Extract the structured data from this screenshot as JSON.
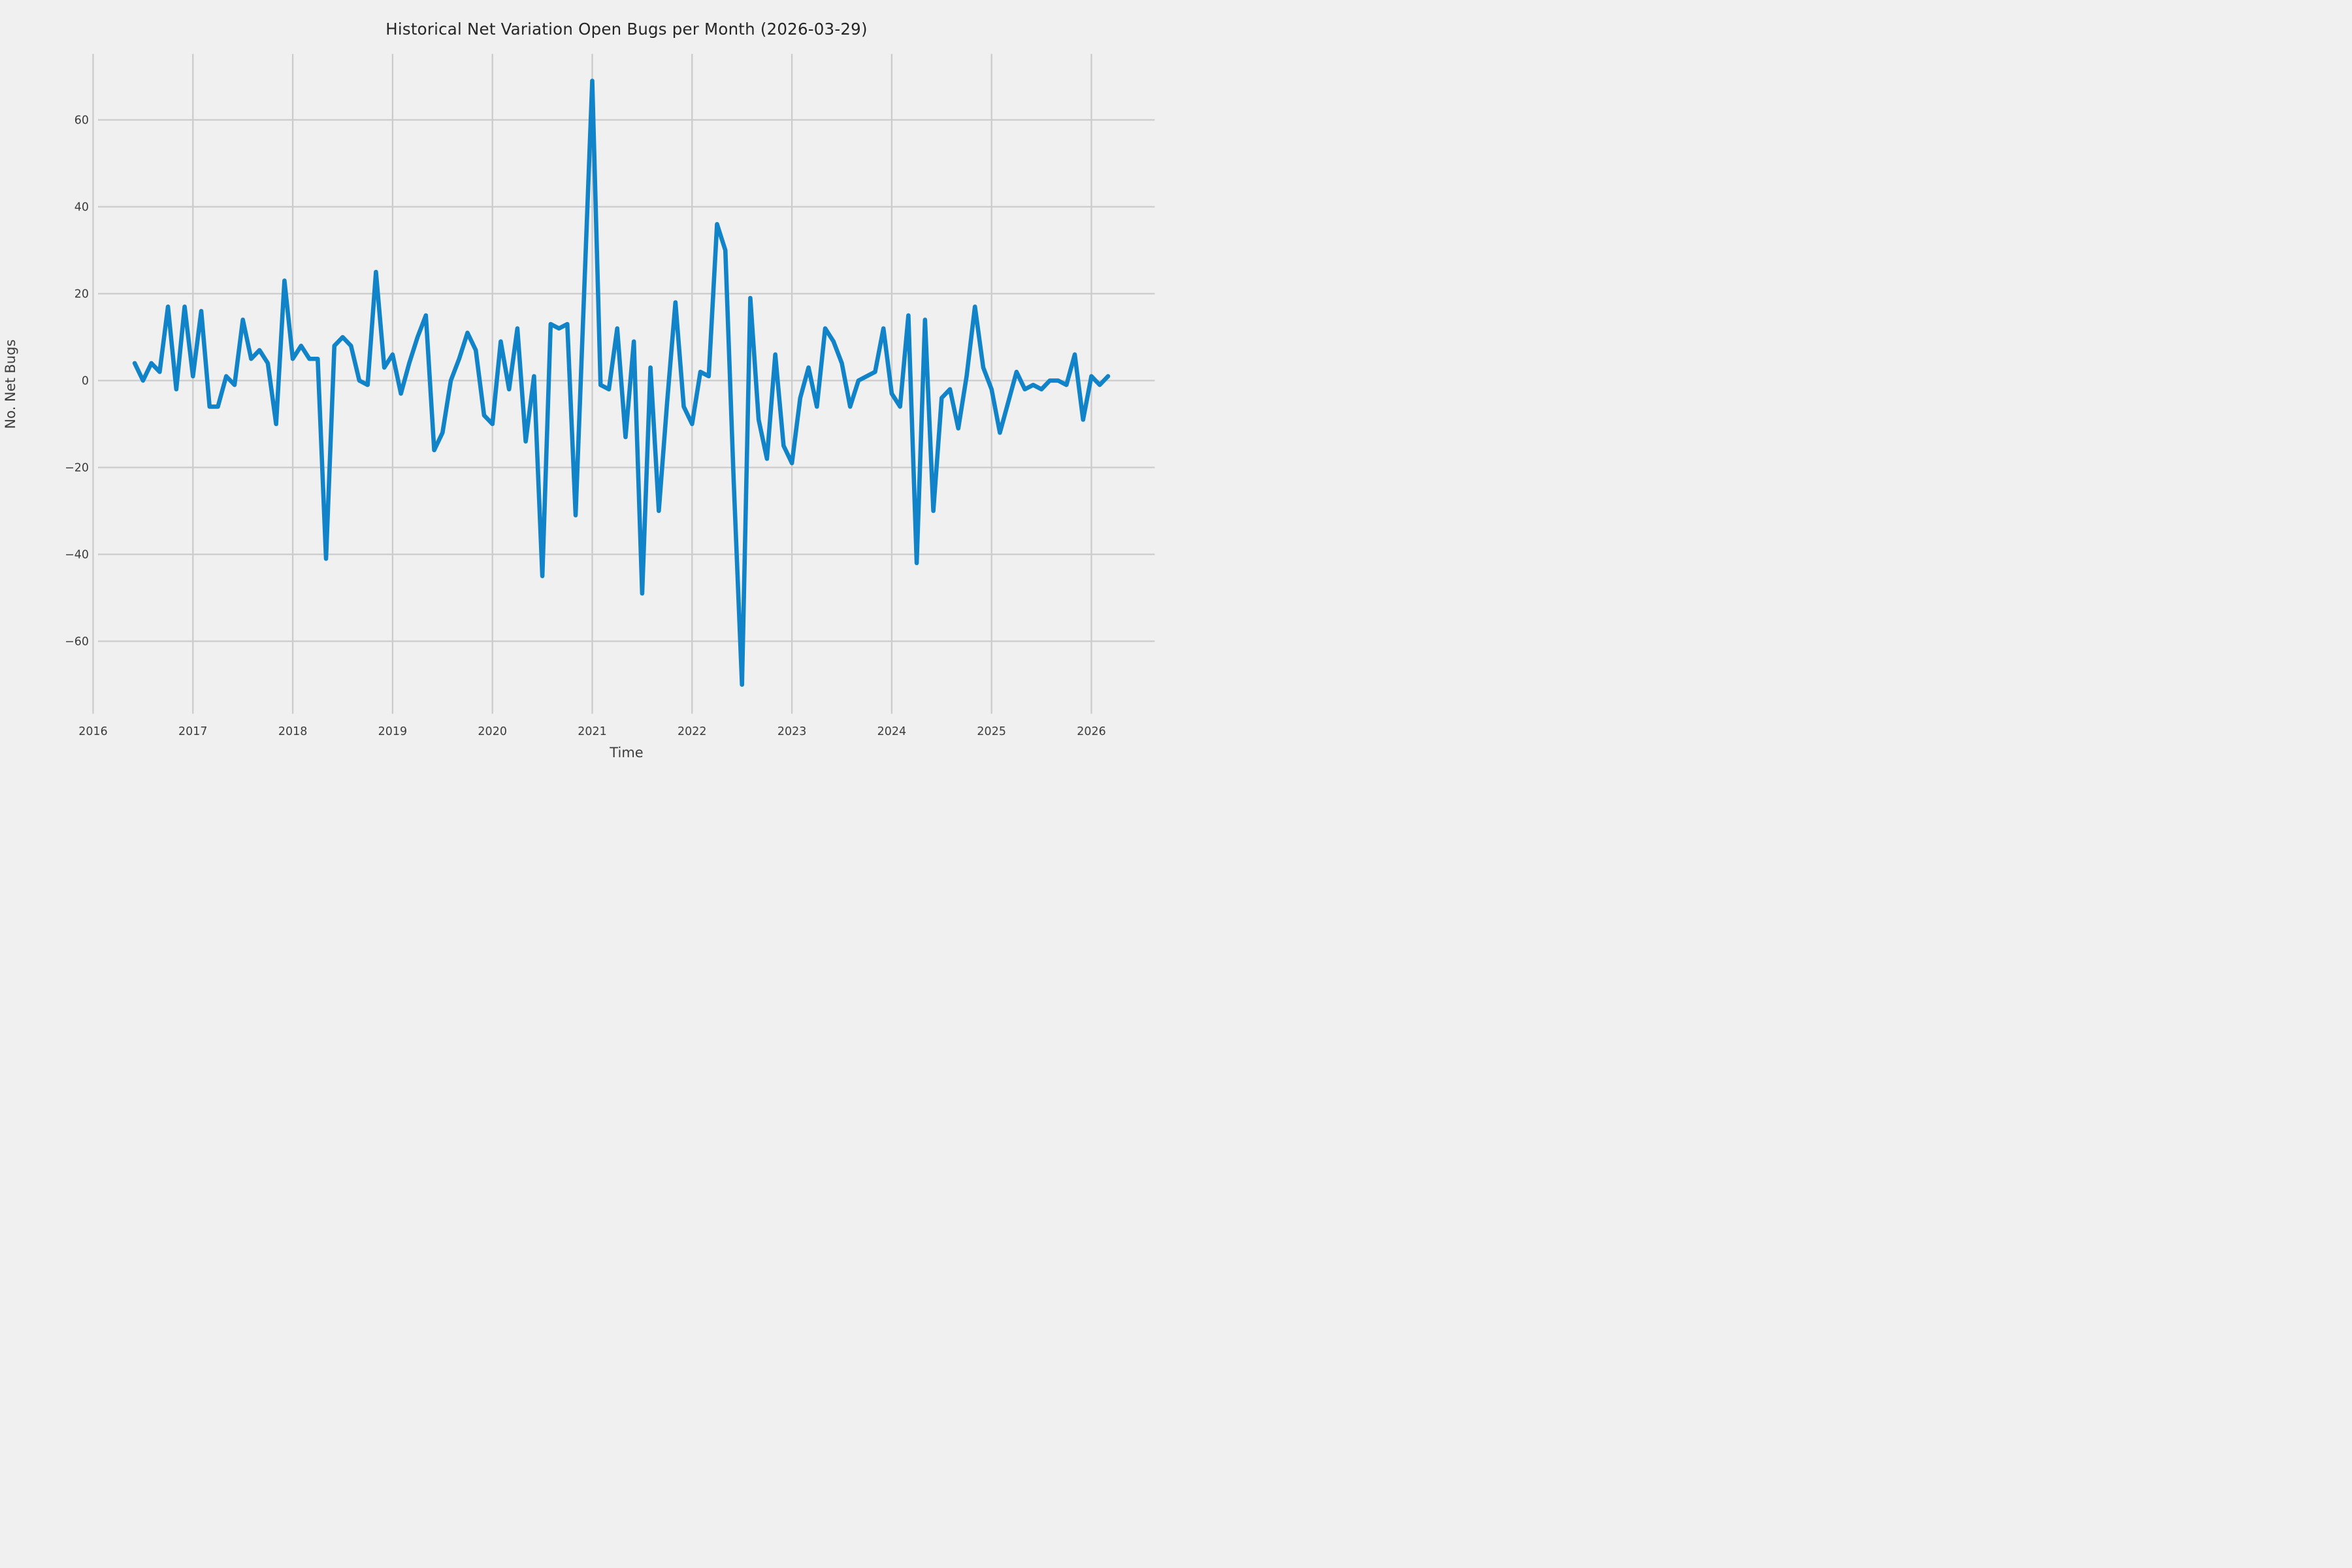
{
  "title": "Historical Net Variation Open Bugs per Month (2026-03-29)",
  "axes": {
    "x_label": "Time",
    "y_label": "No. Net Bugs",
    "x_tick_labels": [
      "2016",
      "2017",
      "2018",
      "2019",
      "2020",
      "2021",
      "2022",
      "2023",
      "2024",
      "2025",
      "2026"
    ],
    "y_tick_labels": [
      "−60",
      "−40",
      "−20",
      "0",
      "20",
      "40",
      "60"
    ]
  },
  "colors": {
    "background": "#f0f0f0",
    "grid": "#cbcbcb",
    "line": "#1184c9",
    "title_text": "#262626",
    "tick_text": "#3c3c3c"
  },
  "chart_data": {
    "type": "line",
    "title": "Historical Net Variation Open Bugs per Month (2026-03-29)",
    "xlabel": "Time",
    "ylabel": "No. Net Bugs",
    "legend": "none",
    "grid": true,
    "x_unit": "month",
    "x_start": "2016-06",
    "x_end": "2026-03",
    "xlim": [
      2016.04,
      2026.64
    ],
    "ylim": [
      -77,
      75.5
    ],
    "x_ticks": [
      2016,
      2017,
      2018,
      2019,
      2020,
      2021,
      2022,
      2023,
      2024,
      2025,
      2026
    ],
    "y_ticks": [
      -60,
      -40,
      -20,
      0,
      20,
      40,
      60
    ],
    "x": [
      "2016-06",
      "2016-07",
      "2016-08",
      "2016-09",
      "2016-10",
      "2016-11",
      "2016-12",
      "2017-01",
      "2017-02",
      "2017-03",
      "2017-04",
      "2017-05",
      "2017-06",
      "2017-07",
      "2017-08",
      "2017-09",
      "2017-10",
      "2017-11",
      "2017-12",
      "2018-01",
      "2018-02",
      "2018-03",
      "2018-04",
      "2018-05",
      "2018-06",
      "2018-07",
      "2018-08",
      "2018-09",
      "2018-10",
      "2018-11",
      "2018-12",
      "2019-01",
      "2019-02",
      "2019-03",
      "2019-04",
      "2019-05",
      "2019-06",
      "2019-07",
      "2019-08",
      "2019-09",
      "2019-10",
      "2019-11",
      "2019-12",
      "2020-01",
      "2020-02",
      "2020-03",
      "2020-04",
      "2020-05",
      "2020-06",
      "2020-07",
      "2020-08",
      "2020-09",
      "2020-10",
      "2020-11",
      "2020-12",
      "2021-01",
      "2021-02",
      "2021-03",
      "2021-04",
      "2021-05",
      "2021-06",
      "2021-07",
      "2021-08",
      "2021-09",
      "2021-10",
      "2021-11",
      "2021-12",
      "2022-01",
      "2022-02",
      "2022-03",
      "2022-04",
      "2022-05",
      "2022-06",
      "2022-07",
      "2022-08",
      "2022-09",
      "2022-10",
      "2022-11",
      "2022-12",
      "2023-01",
      "2023-02",
      "2023-03",
      "2023-04",
      "2023-05",
      "2023-06",
      "2023-07",
      "2023-08",
      "2023-09",
      "2023-10",
      "2023-11",
      "2023-12",
      "2024-01",
      "2024-02",
      "2024-03",
      "2024-04",
      "2024-05",
      "2024-06",
      "2024-07",
      "2024-08",
      "2024-09",
      "2024-10",
      "2024-11",
      "2024-12",
      "2025-01",
      "2025-02",
      "2025-03",
      "2025-04",
      "2025-05",
      "2025-06",
      "2025-07",
      "2025-08",
      "2025-09",
      "2025-10",
      "2025-11",
      "2025-12",
      "2026-01",
      "2026-02",
      "2026-03"
    ],
    "values": [
      4,
      0,
      4,
      2,
      17,
      -2,
      17,
      1,
      16,
      -6,
      -6,
      1,
      -1,
      14,
      5,
      7,
      4,
      -10,
      23,
      5,
      8,
      5,
      5,
      -41,
      8,
      10,
      8,
      0,
      -1,
      25,
      3,
      6,
      -3,
      4,
      10,
      15,
      -16,
      -12,
      0,
      5,
      11,
      7,
      -8,
      -10,
      9,
      -2,
      12,
      -14,
      1,
      -45,
      13,
      12,
      13,
      -31,
      19,
      69,
      -1,
      -2,
      12,
      -13,
      9,
      -49,
      3,
      -30,
      -5,
      18,
      -6,
      -10,
      2,
      1,
      36,
      30,
      -23,
      -70,
      19,
      -9,
      -18,
      6,
      -15,
      -19,
      -4,
      3,
      -6,
      12,
      9,
      4,
      -6,
      0,
      1,
      2,
      12,
      -3,
      -6,
      15,
      -42,
      14,
      -30,
      -4,
      -2,
      -11,
      1,
      17,
      3,
      -2,
      -12,
      -5,
      2,
      -2,
      -1,
      -2,
      0,
      0,
      -1,
      6,
      -9,
      1,
      -1,
      1
    ]
  }
}
